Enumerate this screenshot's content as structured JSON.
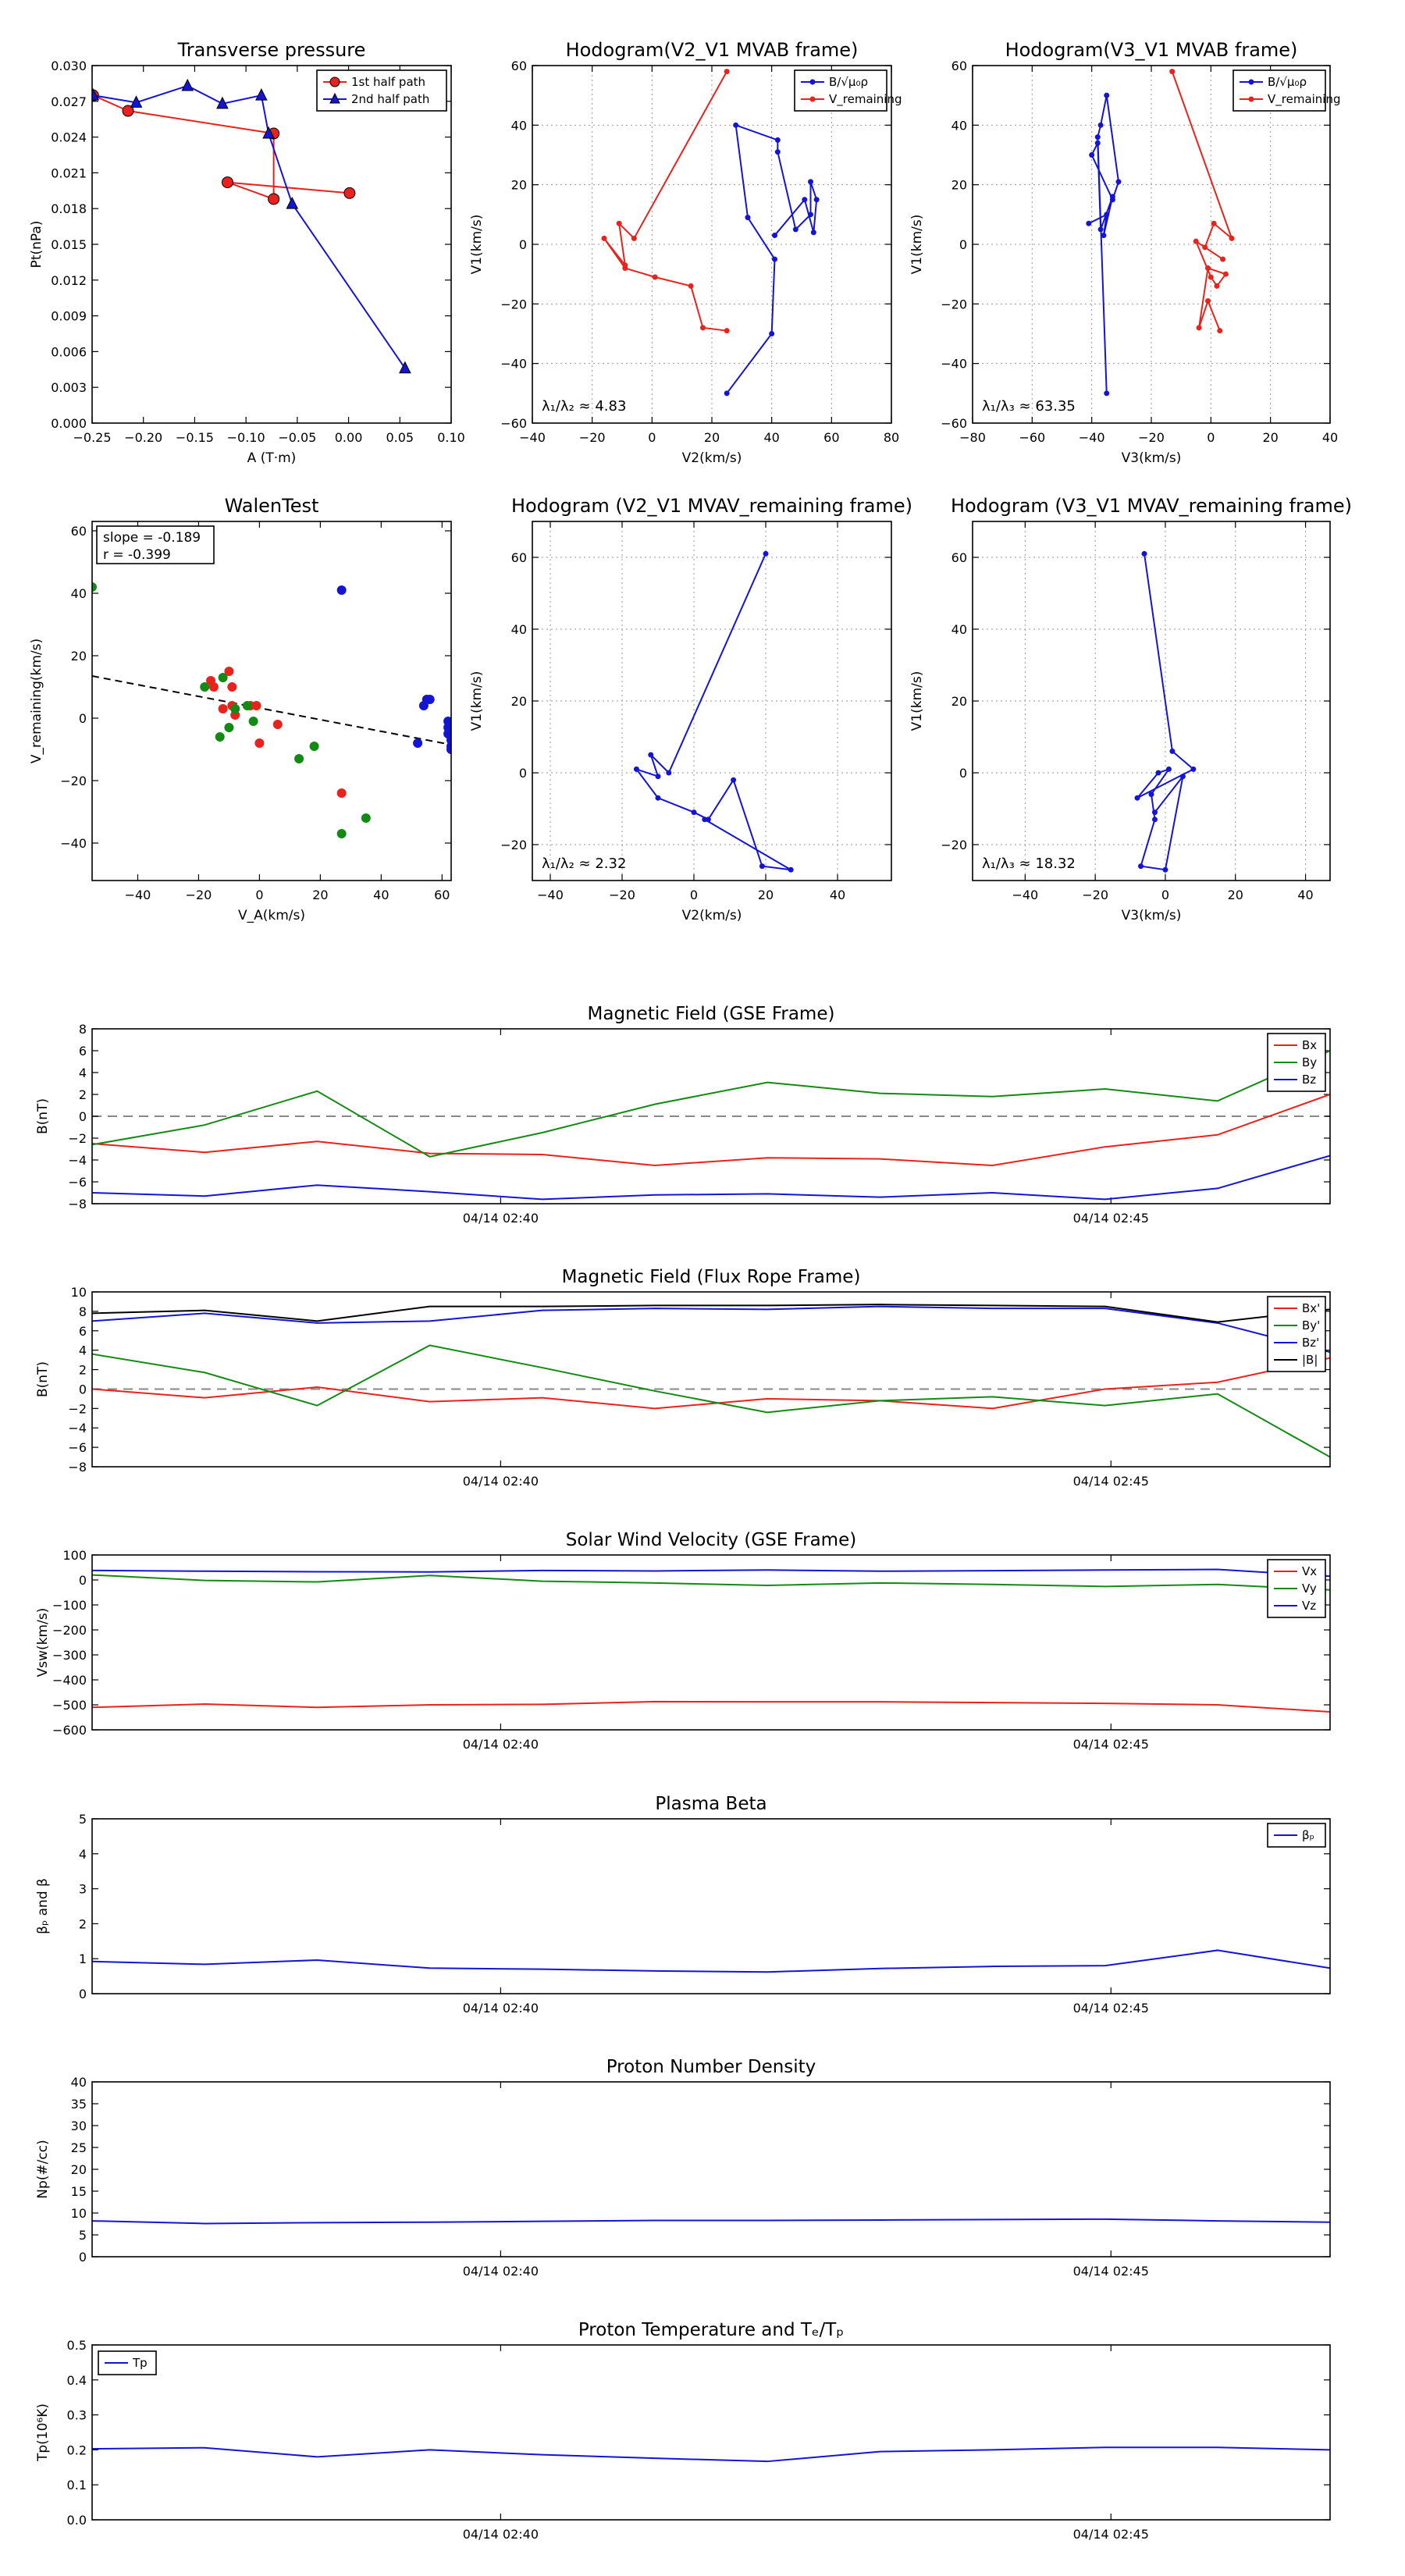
{
  "colors": {
    "red": "#e8221c",
    "green": "#138a13",
    "blue": "#1414d4",
    "black": "#000000",
    "grid": "#9a9a9a",
    "zero": "#888888"
  },
  "chart_data": [
    {
      "id": "tp",
      "type": "line",
      "title": "Transverse pressure",
      "xlabel": "A (T·m)",
      "ylabel": "Pt(nPa)",
      "xlim": [
        -0.25,
        0.1
      ],
      "ylim": [
        0,
        0.03
      ],
      "xticks": [
        -0.25,
        -0.2,
        -0.15,
        -0.1,
        -0.05,
        0.0,
        0.05,
        0.1
      ],
      "xtick_labels": [
        "−0.25",
        "−0.20",
        "−0.15",
        "−0.10",
        "−0.05",
        "0.00",
        "0.05",
        "0.10"
      ],
      "yticks": [
        0,
        0.003,
        0.006,
        0.009,
        0.012,
        0.015,
        0.018,
        0.021,
        0.024,
        0.027,
        0.03
      ],
      "ytick_labels": [
        "0.000",
        "0.003",
        "0.006",
        "0.009",
        "0.012",
        "0.015",
        "0.018",
        "0.021",
        "0.024",
        "0.027",
        "0.030"
      ],
      "grid": false,
      "legend": [
        "1st half path",
        "2nd half path"
      ],
      "series": [
        {
          "name": "1st half path",
          "color": "red",
          "marker": "circle",
          "x": [
            -0.249,
            -0.215,
            -0.073,
            -0.073,
            -0.118,
            0.001
          ],
          "y": [
            0.0275,
            0.0262,
            0.0243,
            0.0188,
            0.0202,
            0.0193
          ]
        },
        {
          "name": "2nd half path",
          "color": "blue",
          "marker": "triangle",
          "x": [
            -0.249,
            -0.207,
            -0.157,
            -0.123,
            -0.085,
            -0.078,
            -0.055,
            0.055
          ],
          "y": [
            0.0275,
            0.0269,
            0.0283,
            0.0268,
            0.0275,
            0.0243,
            0.0184,
            0.0046
          ]
        }
      ]
    },
    {
      "id": "h1",
      "type": "line",
      "title": "Hodogram(V2_V1 MVAB frame)",
      "xlabel": "V2(km/s)",
      "ylabel": "V1(km/s)",
      "xlim": [
        -40,
        80
      ],
      "ylim": [
        -60,
        60
      ],
      "xticks": [
        -40,
        -20,
        0,
        20,
        40,
        60,
        80
      ],
      "xtick_labels": [
        "−40",
        "−20",
        "0",
        "20",
        "40",
        "60",
        "80"
      ],
      "yticks": [
        -60,
        -40,
        -20,
        0,
        20,
        40,
        60
      ],
      "ytick_labels": [
        "−60",
        "−40",
        "−20",
        "0",
        "20",
        "40",
        "60"
      ],
      "grid": true,
      "annotation": "λ₁/λ₂ ≈ 4.83",
      "legend": [
        "B/√μ₀ρ",
        "V_remaining"
      ],
      "series": [
        {
          "name": "B/√μ₀ρ",
          "color": "blue",
          "x": [
            25,
            40,
            41,
            32,
            28,
            42,
            42,
            48,
            53,
            53,
            55,
            54,
            51,
            41
          ],
          "y": [
            -50,
            -30,
            -5,
            9,
            40,
            35,
            31,
            5,
            10,
            21,
            15,
            4,
            15,
            3
          ]
        },
        {
          "name": "V_remaining",
          "color": "red",
          "x": [
            25,
            -6,
            -11,
            -9,
            -16,
            -9,
            1,
            13,
            17,
            25
          ],
          "y": [
            58,
            2,
            7,
            -7,
            2,
            -8,
            -11,
            -14,
            -28,
            -29
          ]
        }
      ]
    },
    {
      "id": "h2",
      "type": "line",
      "title": "Hodogram(V3_V1 MVAB frame)",
      "xlabel": "V3(km/s)",
      "ylabel": "V1(km/s)",
      "xlim": [
        -80,
        40
      ],
      "ylim": [
        -60,
        60
      ],
      "xticks": [
        -80,
        -60,
        -40,
        -20,
        0,
        20,
        40
      ],
      "xtick_labels": [
        "−80",
        "−60",
        "−40",
        "−20",
        "0",
        "20",
        "40"
      ],
      "yticks": [
        -60,
        -40,
        -20,
        0,
        20,
        40,
        60
      ],
      "ytick_labels": [
        "−60",
        "−40",
        "−20",
        "0",
        "20",
        "40",
        "60"
      ],
      "grid": true,
      "annotation": "λ₁/λ₃ ≈ 63.35",
      "legend": [
        "B/√μ₀ρ",
        "V_remaining"
      ],
      "series": [
        {
          "name": "B/√μ₀ρ",
          "color": "blue",
          "x": [
            -35,
            -38,
            -37,
            -35,
            -31,
            -33,
            -40,
            -38,
            -37,
            -33,
            -36,
            -35,
            -41
          ],
          "y": [
            -50,
            36,
            40,
            50,
            21,
            15,
            30,
            34,
            5,
            16,
            3,
            10,
            7
          ]
        },
        {
          "name": "V_remaining",
          "color": "red",
          "x": [
            -13,
            7,
            1,
            -2,
            4,
            -5,
            0,
            2,
            5,
            -1,
            -4,
            -1,
            3
          ],
          "y": [
            58,
            2,
            7,
            -1,
            -5,
            1,
            -11,
            -14,
            -10,
            -8,
            -28,
            -19,
            -29
          ]
        }
      ]
    },
    {
      "id": "walen",
      "type": "scatter",
      "title": "WalenTest",
      "xlabel": "V_A(km/s)",
      "ylabel": "V_remaining(km/s)",
      "xlim": [
        -55,
        63
      ],
      "ylim": [
        -52,
        63
      ],
      "xticks": [
        -40,
        -20,
        0,
        20,
        40,
        60
      ],
      "xtick_labels": [
        "−40",
        "−20",
        "0",
        "20",
        "40",
        "60"
      ],
      "yticks": [
        -40,
        -20,
        0,
        20,
        40,
        60
      ],
      "ytick_labels": [
        "−40",
        "−20",
        "0",
        "20",
        "40",
        "60"
      ],
      "grid": false,
      "fit": {
        "slope": -0.189,
        "r": -0.399,
        "x": [
          -55,
          63
        ],
        "y": [
          13.5,
          -8.5
        ]
      },
      "stats": [
        "slope = -0.189",
        "r = -0.399"
      ],
      "series": [
        {
          "name": "x",
          "color": "red",
          "x": [
            -16,
            -15,
            -12,
            -10,
            -9,
            -9,
            -8,
            -3,
            -1,
            0,
            6,
            27
          ],
          "y": [
            12,
            10,
            3,
            15,
            10,
            4,
            1,
            4,
            4,
            -8,
            -2,
            -24
          ]
        },
        {
          "name": "y",
          "color": "green",
          "x": [
            -55,
            -18,
            -13,
            -12,
            -10,
            -8,
            -4,
            -2,
            13,
            18,
            27,
            35
          ],
          "y": [
            42,
            10,
            -6,
            13,
            -3,
            3,
            4,
            -1,
            -13,
            -9,
            -37,
            -32
          ]
        },
        {
          "name": "z",
          "color": "blue",
          "x": [
            27,
            52,
            54,
            55,
            56,
            62,
            62,
            62,
            63,
            63,
            63,
            63
          ],
          "y": [
            41,
            -8,
            4,
            6,
            6,
            -1,
            -3,
            -5,
            -7,
            -9,
            -10,
            -2
          ]
        }
      ]
    },
    {
      "id": "h3",
      "type": "line",
      "title": "Hodogram (V2_V1 MVAV_remaining frame)",
      "xlabel": "V2(km/s)",
      "ylabel": "V1(km/s)",
      "xlim": [
        -45,
        55
      ],
      "ylim": [
        -30,
        70
      ],
      "xticks": [
        -40,
        -20,
        0,
        20,
        40
      ],
      "xtick_labels": [
        "−40",
        "−20",
        "0",
        "20",
        "40"
      ],
      "yticks": [
        -20,
        0,
        20,
        40,
        60
      ],
      "ytick_labels": [
        "−20",
        "0",
        "20",
        "40",
        "60"
      ],
      "grid": true,
      "annotation": "λ₁/λ₂ ≈ 2.32",
      "series": [
        {
          "name": "V",
          "color": "blue",
          "x": [
            20,
            -7,
            -12,
            -10,
            -16,
            -10,
            0,
            4,
            11,
            19,
            27,
            3
          ],
          "y": [
            61,
            0,
            5,
            -1,
            1,
            -7,
            -11,
            -13,
            -2,
            -26,
            -27,
            -13
          ]
        }
      ]
    },
    {
      "id": "h4",
      "type": "line",
      "title": "Hodogram (V3_V1 MVAV_remaining frame)",
      "xlabel": "V3(km/s)",
      "ylabel": "V1(km/s)",
      "xlim": [
        -55,
        47
      ],
      "ylim": [
        -30,
        70
      ],
      "xticks": [
        -40,
        -20,
        0,
        20,
        40
      ],
      "xtick_labels": [
        "−40",
        "−20",
        "0",
        "20",
        "40"
      ],
      "yticks": [
        -20,
        0,
        20,
        40,
        60
      ],
      "ytick_labels": [
        "−20",
        "0",
        "20",
        "40",
        "60"
      ],
      "grid": true,
      "annotation": "λ₁/λ₃ ≈ 18.32",
      "series": [
        {
          "name": "V",
          "color": "blue",
          "x": [
            -6,
            2,
            8,
            -8,
            -2,
            1,
            -4,
            -3,
            -7,
            0,
            5,
            -3
          ],
          "y": [
            61,
            6,
            1,
            -7,
            0,
            1,
            -6,
            -13,
            -26,
            -27,
            -1,
            -11
          ]
        }
      ]
    },
    {
      "id": "ts1",
      "type": "line",
      "title": "Magnetic Field (GSE Frame)",
      "ylabel": "B(nT)",
      "ylim": [
        -8,
        8
      ],
      "yticks": [
        -8,
        -6,
        -4,
        -2,
        0,
        2,
        4,
        6,
        8
      ],
      "ytick_labels": [
        "−8",
        "−6",
        "−4",
        "−2",
        "0",
        "2",
        "4",
        "6",
        "8"
      ],
      "xtick_labels": [
        "04/14 02:40",
        "04/14 02:45"
      ],
      "zero_line": true,
      "legend": [
        "Bx",
        "By",
        "Bz"
      ],
      "series": [
        {
          "name": "Bx",
          "color": "red",
          "values": [
            -2.5,
            -3.3,
            -2.3,
            -3.4,
            -3.5,
            -4.5,
            -3.8,
            -3.9,
            -4.5,
            -2.8,
            -1.7,
            2.0
          ]
        },
        {
          "name": "By",
          "color": "green",
          "values": [
            -2.6,
            -0.8,
            2.3,
            -3.7,
            -1.5,
            1.1,
            3.1,
            2.1,
            1.8,
            2.5,
            1.4,
            6.0
          ]
        },
        {
          "name": "Bz",
          "color": "blue",
          "values": [
            -7.0,
            -7.3,
            -6.3,
            -6.9,
            -7.6,
            -7.2,
            -7.1,
            -7.4,
            -7.0,
            -7.6,
            -6.6,
            -3.6
          ]
        }
      ]
    },
    {
      "id": "ts2",
      "type": "line",
      "title": "Magnetic Field (Flux Rope Frame)",
      "ylabel": "B(nT)",
      "ylim": [
        -8,
        10
      ],
      "yticks": [
        -8,
        -6,
        -4,
        -2,
        0,
        2,
        4,
        6,
        8,
        10
      ],
      "ytick_labels": [
        "−8",
        "−6",
        "−4",
        "−2",
        "0",
        "2",
        "4",
        "6",
        "8",
        "10"
      ],
      "xtick_labels": [
        "04/14 02:40",
        "04/14 02:45"
      ],
      "zero_line": true,
      "legend": [
        "Bx'",
        "By'",
        "Bz'",
        "|B|"
      ],
      "series": [
        {
          "name": "Bx'",
          "color": "red",
          "values": [
            0.0,
            -0.9,
            0.2,
            -1.3,
            -0.9,
            -2.0,
            -1.0,
            -1.2,
            -2.0,
            0.0,
            0.7,
            3.2
          ]
        },
        {
          "name": "By'",
          "color": "green",
          "values": [
            3.6,
            1.7,
            -1.7,
            4.5,
            2.2,
            -0.2,
            -2.4,
            -1.2,
            -0.8,
            -1.7,
            -0.5,
            -7.0
          ]
        },
        {
          "name": "Bz'",
          "color": "blue",
          "values": [
            7.0,
            7.8,
            6.8,
            7.0,
            8.1,
            8.3,
            8.2,
            8.5,
            8.3,
            8.3,
            6.8,
            3.8
          ]
        },
        {
          "name": "|B|",
          "color": "black",
          "values": [
            7.8,
            8.1,
            7.0,
            8.5,
            8.5,
            8.6,
            8.6,
            8.7,
            8.6,
            8.5,
            6.9,
            8.2
          ]
        }
      ]
    },
    {
      "id": "ts3",
      "type": "line",
      "title": "Solar Wind Velocity (GSE Frame)",
      "ylabel": "Vsw(km/s)",
      "ylim": [
        -600,
        100
      ],
      "yticks": [
        -600,
        -500,
        -400,
        -300,
        -200,
        -100,
        0,
        100
      ],
      "ytick_labels": [
        "−600",
        "−500",
        "−400",
        "−300",
        "−200",
        "−100",
        "0",
        "100"
      ],
      "xtick_labels": [
        "04/14 02:40",
        "04/14 02:45"
      ],
      "zero_line": false,
      "legend": [
        "Vx",
        "Vy",
        "Vz"
      ],
      "series": [
        {
          "name": "Vx",
          "color": "red",
          "values": [
            -510,
            -497,
            -510,
            -500,
            -498,
            -487,
            -488,
            -488,
            -491,
            -494,
            -500,
            -528
          ]
        },
        {
          "name": "Vy",
          "color": "green",
          "values": [
            20,
            -2,
            -8,
            18,
            -5,
            -12,
            -22,
            -12,
            -18,
            -26,
            -18,
            -40
          ]
        },
        {
          "name": "Vz",
          "color": "blue",
          "values": [
            38,
            35,
            33,
            32,
            38,
            36,
            40,
            35,
            37,
            40,
            42,
            15
          ]
        }
      ]
    },
    {
      "id": "ts4",
      "type": "line",
      "title": "Plasma Beta",
      "ylabel": "βₚ and β",
      "ylim": [
        0,
        5
      ],
      "yticks": [
        0,
        1,
        2,
        3,
        4,
        5
      ],
      "ytick_labels": [
        "0",
        "1",
        "2",
        "3",
        "4",
        "5"
      ],
      "xtick_labels": [
        "04/14 02:40",
        "04/14 02:45"
      ],
      "zero_line": false,
      "legend": [
        "βₚ"
      ],
      "series": [
        {
          "name": "βₚ",
          "color": "blue",
          "values": [
            0.92,
            0.84,
            0.96,
            0.73,
            0.7,
            0.65,
            0.62,
            0.72,
            0.78,
            0.8,
            1.24,
            0.73
          ]
        }
      ]
    },
    {
      "id": "ts5",
      "type": "line",
      "title": "Proton Number Density",
      "ylabel": "Np(#/cc)",
      "ylim": [
        0,
        40
      ],
      "yticks": [
        0,
        5,
        10,
        15,
        20,
        25,
        30,
        35,
        40
      ],
      "ytick_labels": [
        "0",
        "5",
        "10",
        "15",
        "20",
        "25",
        "30",
        "35",
        "40"
      ],
      "xtick_labels": [
        "04/14 02:40",
        "04/14 02:45"
      ],
      "zero_line": false,
      "legend": [],
      "series": [
        {
          "name": "Np",
          "color": "blue",
          "values": [
            8.2,
            7.6,
            7.8,
            7.9,
            8.1,
            8.3,
            8.3,
            8.4,
            8.5,
            8.6,
            8.2,
            7.9
          ]
        }
      ]
    },
    {
      "id": "ts6",
      "type": "line",
      "title": "Proton Temperature and Tₑ/Tₚ",
      "ylabel": "Tp(10⁶K)",
      "ylim": [
        0,
        0.5
      ],
      "yticks": [
        0,
        0.1,
        0.2,
        0.3,
        0.4,
        0.5
      ],
      "ytick_labels": [
        "0.0",
        "0.1",
        "0.2",
        "0.3",
        "0.4",
        "0.5"
      ],
      "xtick_labels": [
        "04/14 02:40",
        "04/14 02:45"
      ],
      "zero_line": false,
      "legend": [
        "Tp"
      ],
      "series": [
        {
          "name": "Tp",
          "color": "blue",
          "values": [
            0.203,
            0.206,
            0.18,
            0.2,
            0.186,
            0.176,
            0.167,
            0.195,
            0.2,
            0.207,
            0.207,
            0.2
          ]
        }
      ]
    }
  ]
}
